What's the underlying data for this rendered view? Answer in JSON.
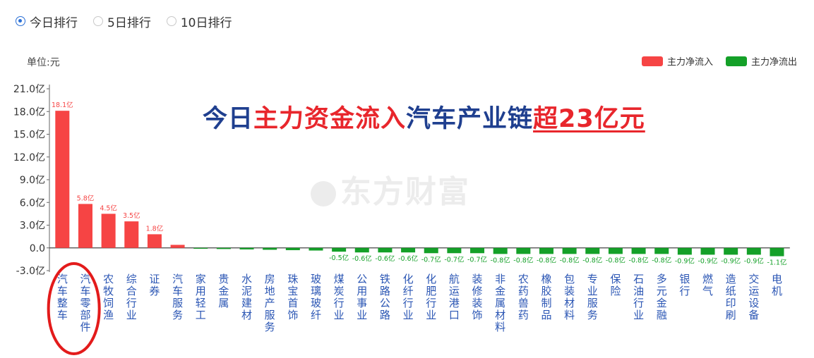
{
  "tabs": [
    {
      "label": "今日排行",
      "selected": true
    },
    {
      "label": "5日排行",
      "selected": false
    },
    {
      "label": "10日排行",
      "selected": false
    }
  ],
  "headline": {
    "part1": "今日",
    "part2": "主力资金流入",
    "part3": "汽车产业链",
    "part4": "超23亿元"
  },
  "watermark": "东方财富",
  "colors": {
    "inflow": "#f64444",
    "outflow": "#14a028",
    "headline_blue": "#1f3f8f",
    "headline_red": "#e8262c",
    "category_text": "#2b56b4",
    "highlight_oval": "#e31b1b"
  },
  "chart_data": {
    "type": "bar",
    "unit_label": "单位:元",
    "legend": [
      {
        "name": "主力净流入",
        "color": "#f64444"
      },
      {
        "name": "主力净流出",
        "color": "#14a028"
      }
    ],
    "legend_position": "top-right",
    "yticks": [
      "21.0亿",
      "18.0亿",
      "15.0亿",
      "12.0亿",
      "9.0亿",
      "6.0亿",
      "3.0亿",
      "0.0",
      "-3.0亿"
    ],
    "ylim": [
      -3.0,
      21.0
    ],
    "y_unit": "亿",
    "categories": [
      "汽车整车",
      "汽车零部件",
      "农牧饲渔",
      "综合行业",
      "证券",
      "汽车服务",
      "家用轻工",
      "贵金属",
      "水泥建材",
      "房地产服务",
      "珠宝首饰",
      "玻璃玻纤",
      "煤炭行业",
      "公用事业",
      "铁路公路",
      "化纤行业",
      "化肥行业",
      "航运港口",
      "装修装饰",
      "非金属材料",
      "农药兽药",
      "橡胶制品",
      "包装材料",
      "专业服务",
      "保险",
      "石油行业",
      "多元金融",
      "银行",
      "燃气",
      "造纸印刷",
      "交运设备",
      "电机"
    ],
    "values": [
      18.1,
      5.8,
      4.5,
      3.5,
      1.8,
      0.4,
      -0.1,
      -0.15,
      -0.2,
      -0.25,
      -0.3,
      -0.35,
      -0.5,
      -0.6,
      -0.6,
      -0.6,
      -0.7,
      -0.7,
      -0.7,
      -0.8,
      -0.8,
      -0.8,
      -0.8,
      -0.8,
      -0.8,
      -0.8,
      -0.8,
      -0.9,
      -0.9,
      -0.9,
      -0.9,
      -1.1
    ],
    "data_labels": [
      "18.1亿",
      "5.8亿",
      "4.5亿",
      "3.5亿",
      "1.8亿",
      "",
      "",
      "",
      "",
      "",
      "",
      "",
      "-0.5亿",
      "-0.6亿",
      "-0.6亿",
      "-0.6亿",
      "-0.7亿",
      "-0.7亿",
      "-0.7亿",
      "-0.8亿",
      "-0.8亿",
      "-0.8亿",
      "-0.8亿",
      "-0.8亿",
      "-0.8亿",
      "-0.8亿",
      "-0.8亿",
      "-0.9亿",
      "-0.9亿",
      "-0.9亿",
      "-0.9亿",
      "-1.1亿"
    ],
    "highlighted_categories": [
      "汽车整车",
      "汽车零部件"
    ]
  }
}
